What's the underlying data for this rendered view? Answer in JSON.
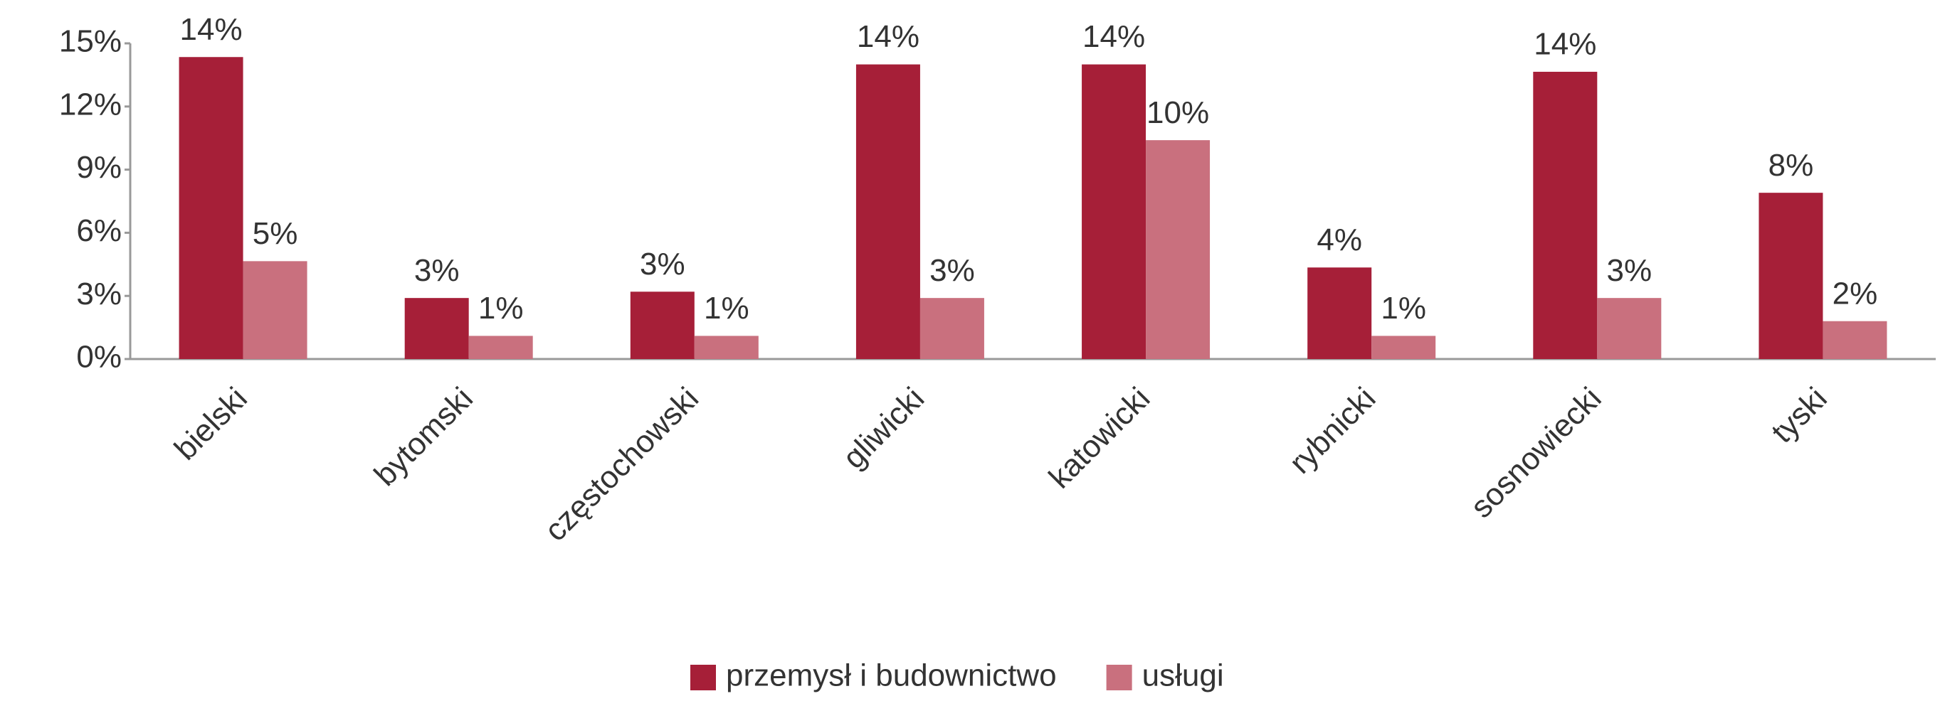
{
  "chart_data": {
    "type": "bar",
    "categories": [
      "bielski",
      "bytomski",
      "częstochowski",
      "gliwicki",
      "katowicki",
      "rybnicki",
      "sosnowiecki",
      "tyski"
    ],
    "series": [
      {
        "name": "przemysł i budownictwo",
        "color": "#a61f38",
        "values": [
          14.35,
          2.9,
          3.2,
          14.0,
          14.0,
          4.35,
          13.65,
          7.9
        ],
        "value_labels": [
          "14%",
          "3%",
          "3%",
          "14%",
          "14%",
          "4%",
          "14%",
          "8%"
        ]
      },
      {
        "name": "usługi",
        "color": "#c9707e",
        "values": [
          4.65,
          1.1,
          1.1,
          2.9,
          10.4,
          1.1,
          2.9,
          1.8
        ],
        "value_labels": [
          "5%",
          "1%",
          "1%",
          "3%",
          "10%",
          "1%",
          "3%",
          "2%"
        ]
      }
    ],
    "ylim": [
      0,
      15
    ],
    "yticks": [
      {
        "value": 0,
        "label": "0%"
      },
      {
        "value": 3,
        "label": "3%"
      },
      {
        "value": 6,
        "label": "6%"
      },
      {
        "value": 9,
        "label": "9%"
      },
      {
        "value": 12,
        "label": "12%"
      },
      {
        "value": 15,
        "label": "15%"
      }
    ],
    "grid": false,
    "legend": "bottom"
  }
}
